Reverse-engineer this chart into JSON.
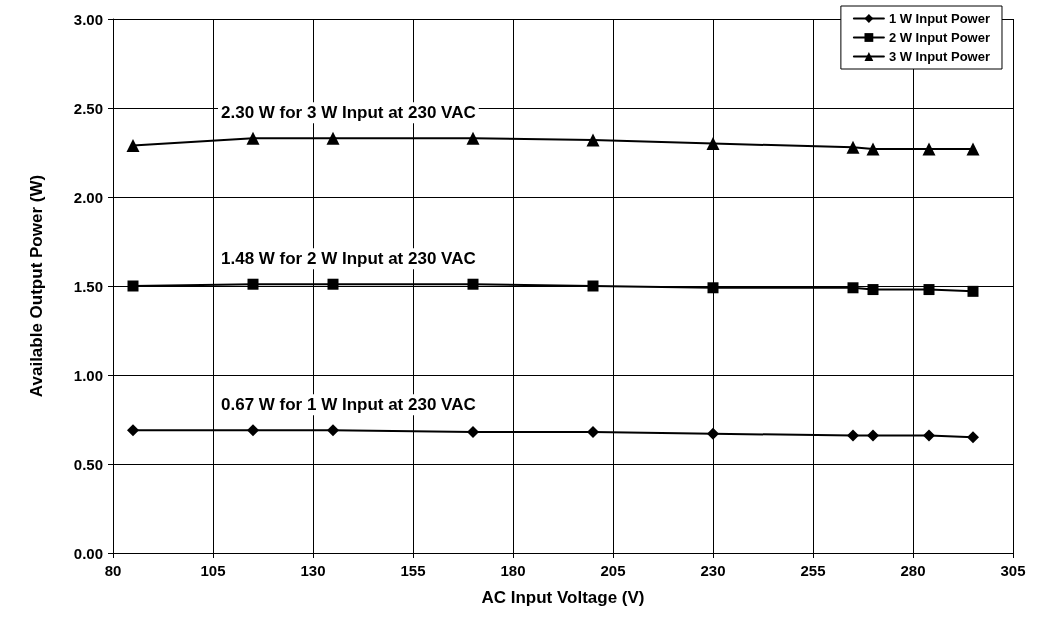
{
  "chart_data": {
    "type": "line",
    "xlabel": "AC Input Voltage (V)",
    "ylabel": "Available Output Power (W)",
    "x": [
      85,
      115,
      135,
      170,
      200,
      230,
      265,
      270,
      284,
      295
    ],
    "series": [
      {
        "name": "1 W Input Power",
        "color": "#000000",
        "marker": "diamond",
        "values": [
          0.69,
          0.69,
          0.69,
          0.68,
          0.68,
          0.67,
          0.66,
          0.66,
          0.66,
          0.65
        ]
      },
      {
        "name": "2 W Input Power",
        "color": "#000000",
        "marker": "square",
        "values": [
          1.5,
          1.51,
          1.51,
          1.51,
          1.5,
          1.49,
          1.49,
          1.48,
          1.48,
          1.47
        ]
      },
      {
        "name": "3 W Input Power",
        "color": "#000000",
        "marker": "triangle",
        "values": [
          2.29,
          2.33,
          2.33,
          2.33,
          2.32,
          2.3,
          2.28,
          2.27,
          2.27,
          2.27
        ]
      }
    ],
    "annotations": [
      "0.67 W for 1 W Input at 230 VAC",
      "1.48 W for 2 W Input at 230 VAC",
      "2.30 W for 3 W Input at 230 VAC"
    ],
    "xlim": [
      80,
      305
    ],
    "xticks": [
      80,
      105,
      130,
      155,
      180,
      205,
      230,
      255,
      280,
      305
    ],
    "ylim": [
      0,
      3
    ],
    "yticks": [
      {
        "value": 0,
        "label": "0.00"
      },
      {
        "value": 0.5,
        "label": "0.50"
      },
      {
        "value": 1,
        "label": "1.00"
      },
      {
        "value": 1.5,
        "label": "1.50"
      },
      {
        "value": 2,
        "label": "2.00"
      },
      {
        "value": 2.5,
        "label": "2.50"
      },
      {
        "value": 3,
        "label": "3.00"
      }
    ],
    "grid": true,
    "legend": "top right",
    "line_style": "solid"
  }
}
